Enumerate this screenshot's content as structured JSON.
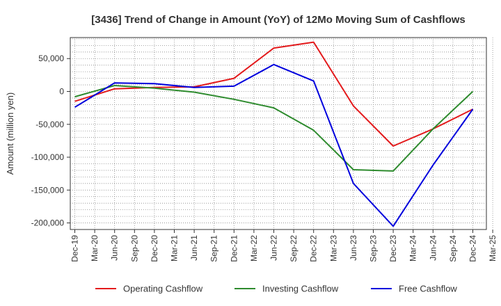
{
  "chart_data": {
    "type": "line",
    "title": "[3436]  Trend of Change in Amount (YoY) of 12Mo Moving Sum of Cashflows",
    "xlabel": "",
    "ylabel": "Amount (million yen)",
    "categories": [
      "Dec-19",
      "Mar-20",
      "Jun-20",
      "Sep-20",
      "Dec-20",
      "Mar-21",
      "Jun-21",
      "Sep-21",
      "Dec-21",
      "Mar-22",
      "Jun-22",
      "Sep-22",
      "Dec-22",
      "Mar-23",
      "Jun-23",
      "Sep-23",
      "Dec-23",
      "Mar-24",
      "Jun-24",
      "Sep-24",
      "Dec-24",
      "Mar-25"
    ],
    "ylim": [
      -210000,
      82000
    ],
    "yticks": [
      50000,
      0,
      -50000,
      -100000,
      -150000,
      -200000
    ],
    "ytick_labels": [
      "50,000",
      "0",
      "-50,000",
      "-100,000",
      "-150,000",
      "-200,000"
    ],
    "grid": true,
    "legend_position": "bottom",
    "series": [
      {
        "name": "Operating Cashflow",
        "color": "#e31a1c",
        "points": [
          [
            0,
            -15000
          ],
          [
            2,
            4000
          ],
          [
            4,
            6000
          ],
          [
            6,
            7000
          ],
          [
            8,
            20000
          ],
          [
            10,
            66000
          ],
          [
            12,
            75000
          ],
          [
            14,
            -22000
          ],
          [
            16,
            -83000
          ],
          [
            18,
            -57000
          ],
          [
            20,
            -27000
          ]
        ]
      },
      {
        "name": "Investing Cashflow",
        "color": "#2e8b2e",
        "points": [
          [
            0,
            -8000
          ],
          [
            2,
            9000
          ],
          [
            4,
            5000
          ],
          [
            6,
            -1000
          ],
          [
            8,
            -12000
          ],
          [
            10,
            -25000
          ],
          [
            12,
            -59000
          ],
          [
            14,
            -119000
          ],
          [
            16,
            -121000
          ],
          [
            18,
            -57000
          ],
          [
            20,
            0
          ]
        ]
      },
      {
        "name": "Free Cashflow",
        "color": "#0000dd",
        "points": [
          [
            0,
            -24000
          ],
          [
            2,
            13000
          ],
          [
            4,
            12000
          ],
          [
            6,
            6000
          ],
          [
            8,
            8000
          ],
          [
            10,
            41000
          ],
          [
            12,
            16000
          ],
          [
            14,
            -140000
          ],
          [
            16,
            -205000
          ],
          [
            18,
            -112000
          ],
          [
            20,
            -27000
          ]
        ]
      }
    ]
  }
}
